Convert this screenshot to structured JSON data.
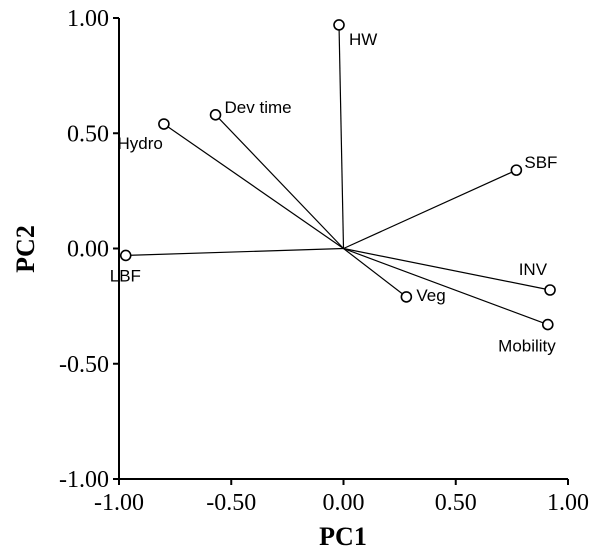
{
  "chart_data": {
    "type": "scatter",
    "title": "",
    "xlabel": "PC1",
    "ylabel": "PC2",
    "xlim": [
      -1.0,
      1.0
    ],
    "ylim": [
      -1.0,
      1.0
    ],
    "x_ticks": [
      "-1.00",
      "-0.50",
      "0.00",
      "0.50",
      "1.00"
    ],
    "y_ticks": [
      "1.00",
      "0.50",
      "0.00",
      "-0.50",
      "-1.00"
    ],
    "grid": false,
    "vectors_from_origin": true,
    "points": [
      {
        "label": "HW",
        "x": -0.02,
        "y": 0.97
      },
      {
        "label": "Dev time",
        "x": -0.57,
        "y": 0.58
      },
      {
        "label": "Hydro",
        "x": -0.8,
        "y": 0.54
      },
      {
        "label": "SBF",
        "x": 0.77,
        "y": 0.34
      },
      {
        "label": "LBF",
        "x": -0.97,
        "y": -0.03
      },
      {
        "label": "INV",
        "x": 0.92,
        "y": -0.18
      },
      {
        "label": "Veg",
        "x": 0.28,
        "y": -0.21
      },
      {
        "label": "Mobility",
        "x": 0.91,
        "y": -0.33
      }
    ]
  }
}
